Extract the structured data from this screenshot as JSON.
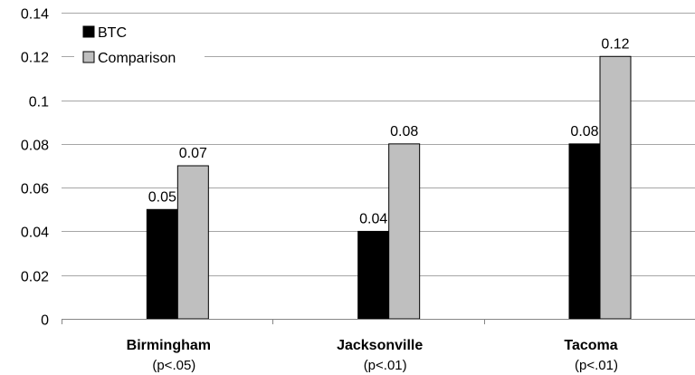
{
  "chart_data": {
    "type": "bar",
    "categories": [
      "Birmingham",
      "Jacksonville",
      "Tacoma"
    ],
    "category_notes": [
      "(p<.05)",
      "(p<.01)",
      "(p<.01)"
    ],
    "series": [
      {
        "name": "BTC",
        "values": [
          0.05,
          0.04,
          0.08
        ],
        "color": "#000000"
      },
      {
        "name": "Comparison",
        "values": [
          0.07,
          0.08,
          0.12
        ],
        "color": "#bfbfbf"
      }
    ],
    "data_labels": [
      [
        "0.05",
        "0.04",
        "0.08"
      ],
      [
        "0.07",
        "0.08",
        "0.12"
      ]
    ],
    "y_ticks": [
      "0",
      "0.02",
      "0.04",
      "0.06",
      "0.08",
      "0.1",
      "0.12",
      "0.14"
    ],
    "ylim": [
      0,
      0.14
    ],
    "grid": true,
    "legend_position": "top-left",
    "title": "",
    "xlabel": "",
    "ylabel": ""
  }
}
